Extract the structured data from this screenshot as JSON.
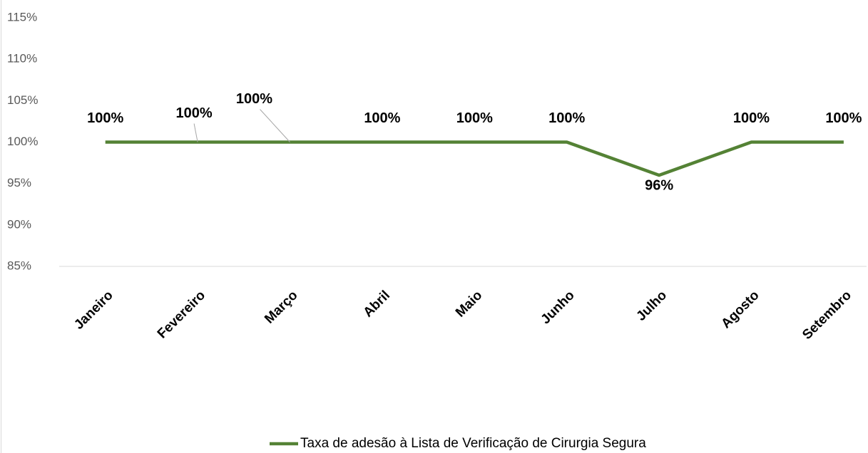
{
  "chart_data": {
    "type": "line",
    "categories": [
      "Janeiro",
      "Fevereiro",
      "Março",
      "Abril",
      "Maio",
      "Junho",
      "Julho",
      "Agosto",
      "Setembro"
    ],
    "series": [
      {
        "name": "Taxa de adesão à Lista de Verificação de Cirurgia Segura",
        "color": "#548235",
        "values": [
          100,
          100,
          100,
          100,
          100,
          100,
          96,
          100,
          100
        ],
        "value_labels": [
          "100%",
          "100%",
          "100%",
          "100%",
          "100%",
          "100%",
          "96%",
          "100%",
          "100%"
        ]
      }
    ],
    "ylim": [
      85,
      115
    ],
    "yticks": [
      {
        "value": 85,
        "label": "85%"
      },
      {
        "value": 90,
        "label": "90%"
      },
      {
        "value": 95,
        "label": "95%"
      },
      {
        "value": 100,
        "label": "100%"
      },
      {
        "value": 105,
        "label": "105%"
      },
      {
        "value": 110,
        "label": "110%"
      },
      {
        "value": 115,
        "label": "115%"
      }
    ],
    "grid": false,
    "legend": "bottom"
  }
}
